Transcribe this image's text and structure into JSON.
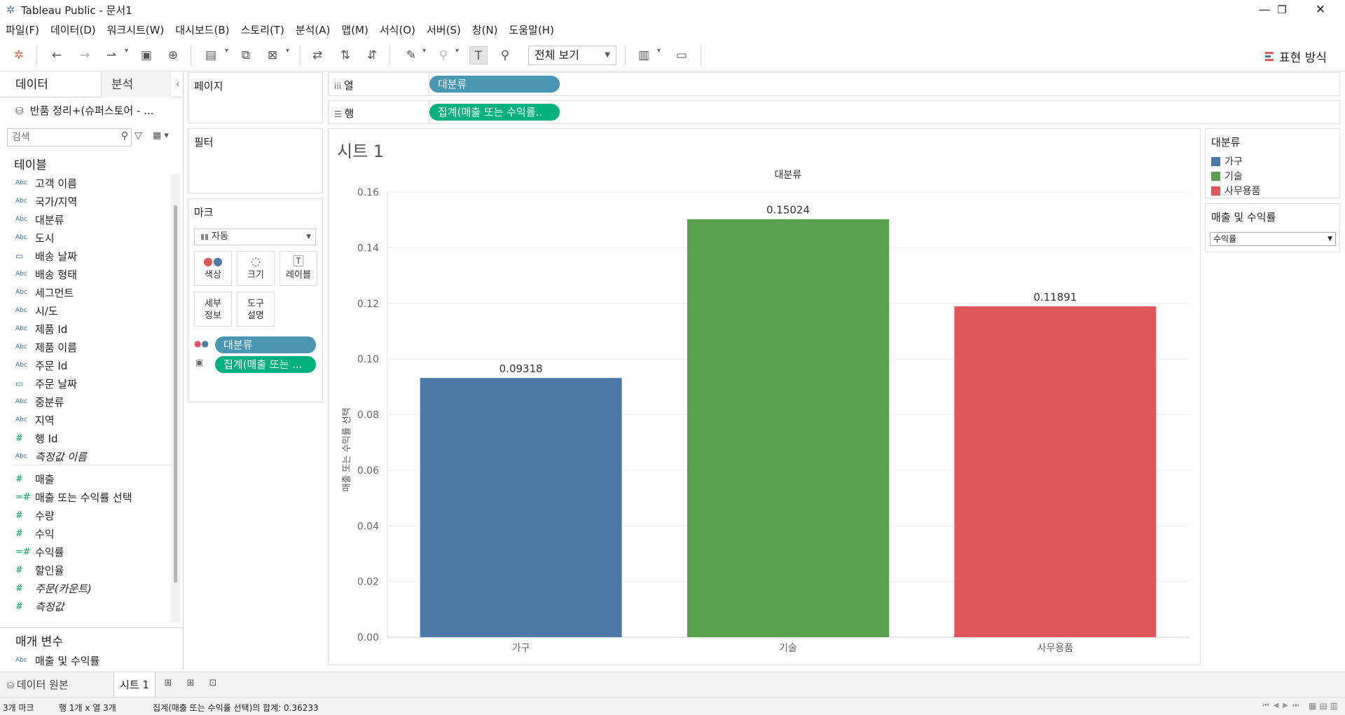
{
  "window": {
    "title": "Tableau Public - 문서1",
    "minimize": "—",
    "restore": "❐",
    "close": "✕"
  },
  "menu": [
    "파일(F)",
    "데이터(D)",
    "워크시트(W)",
    "대시보드(B)",
    "스토리(T)",
    "분석(A)",
    "맵(M)",
    "서식(O)",
    "서버(S)",
    "창(N)",
    "도움말(H)"
  ],
  "toolbar": {
    "view_select": "전체 보기",
    "show_me": "표현 방식"
  },
  "data_pane": {
    "tab_data": "데이터",
    "tab_analysis": "분석",
    "datasource": "반품 정리+(슈퍼스토어 - ...",
    "search_placeholder": "검색",
    "tables_title": "테이블",
    "fields": [
      {
        "type": "Abc",
        "name": "고객 이름"
      },
      {
        "type": "Abc",
        "name": "국가/지역"
      },
      {
        "type": "Abc",
        "name": "대분류"
      },
      {
        "type": "Abc",
        "name": "도시"
      },
      {
        "type": "date",
        "name": "배송 날짜"
      },
      {
        "type": "Abc",
        "name": "배송 형태"
      },
      {
        "type": "Abc",
        "name": "세그먼트"
      },
      {
        "type": "Abc",
        "name": "시/도"
      },
      {
        "type": "Abc",
        "name": "제품 Id"
      },
      {
        "type": "Abc",
        "name": "제품 이름"
      },
      {
        "type": "Abc",
        "name": "주문 Id"
      },
      {
        "type": "date",
        "name": "주문 날짜"
      },
      {
        "type": "Abc",
        "name": "중분류"
      },
      {
        "type": "Abc",
        "name": "지역"
      },
      {
        "type": "#",
        "name": "행 Id"
      },
      {
        "type": "Abc",
        "name": "측정값 이름",
        "italic": true
      }
    ],
    "measures": [
      {
        "type": "#",
        "name": "매출"
      },
      {
        "type": "=#",
        "name": "매출 또는 수익률 선택"
      },
      {
        "type": "#",
        "name": "수량"
      },
      {
        "type": "#",
        "name": "수익"
      },
      {
        "type": "=#",
        "name": "수익률"
      },
      {
        "type": "#",
        "name": "할인율"
      },
      {
        "type": "#",
        "name": "주문(카운트)",
        "italic": true
      },
      {
        "type": "#",
        "name": "측정값",
        "italic": true
      }
    ],
    "params_title": "매개 변수",
    "params": [
      {
        "type": "Abc",
        "name": "매출 및 수익률"
      }
    ]
  },
  "cards": {
    "pages": "페이지",
    "filters": "필터",
    "marks": "마크",
    "marks_type": "자동",
    "mark_buttons": {
      "color": "색상",
      "size": "크기",
      "label": "레이블",
      "detail": "세부\n정보",
      "tooltip": "도구\n설명"
    },
    "mark_pills": [
      "대분류",
      "집계(매출 또는 ..."
    ]
  },
  "shelves": {
    "columns_label": "열",
    "rows_label": "행",
    "columns_pill": "대분류",
    "rows_pill": "집계(매출 또는 수익률.."
  },
  "sheet": {
    "title": "시트 1"
  },
  "chart_data": {
    "type": "bar",
    "title": "",
    "column_header": "대분류",
    "categories": [
      "가구",
      "기술",
      "사무용품"
    ],
    "values": [
      0.09318,
      0.15024,
      0.11891
    ],
    "value_labels": [
      "0.09318",
      "0.15024",
      "0.11891"
    ],
    "colors": [
      "#4e79a7",
      "#59a14f",
      "#e15759"
    ],
    "ylabel": "매출 또는 수익률 선택",
    "xlabel": "",
    "ylim": [
      0,
      0.16
    ],
    "yticks": [
      "0.00",
      "0.02",
      "0.04",
      "0.06",
      "0.08",
      "0.10",
      "0.12",
      "0.14",
      "0.16"
    ],
    "grid": true
  },
  "legends": {
    "color_title": "대분류",
    "color_items": [
      {
        "label": "가구",
        "color": "#4e79a7"
      },
      {
        "label": "기술",
        "color": "#59a14f"
      },
      {
        "label": "사무용품",
        "color": "#e15759"
      }
    ],
    "param_title": "매출 및 수익률",
    "param_value": "수익률"
  },
  "tabs": {
    "datasource": "데이터 원본",
    "sheet1": "시트 1"
  },
  "status": {
    "marks": "3개 마크",
    "rows_cols": "행 1개 x 열 3개",
    "sum": "집계(매출 또는 수익률 선택)의 합계: 0.36233"
  }
}
